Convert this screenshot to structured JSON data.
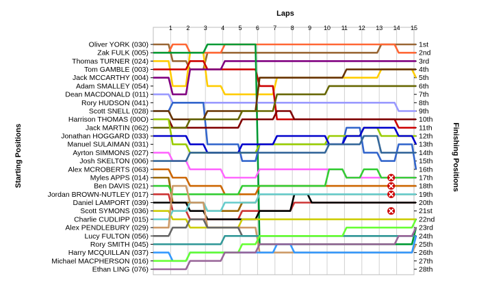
{
  "chart_data": {
    "type": "line",
    "title": "",
    "xlabel": "Laps",
    "ylabel_left": "Starting Positions",
    "ylabel_right": "Finishing Positions",
    "laps": [
      1,
      2,
      3,
      4,
      5,
      6,
      7,
      8,
      9,
      10,
      11,
      12,
      13,
      14,
      15
    ],
    "start_labels": [
      "Oliver YORK (030)",
      "Zak FULK (005)",
      "Thomas TURNER (024)",
      "Tom GAMBLE (003)",
      "Jack MCCARTHY (004)",
      "Adam SMALLEY (054)",
      "Dean MACDONALD (011)",
      "Rory HUDSON (041)",
      "Scott SNELL (028)",
      "Harrison THOMAS (00O)",
      "Jack MARTIN (062)",
      "Jonathan HOGGARD (033)",
      "Manuel SULAIMAN (031)",
      "Ayrton SIMMONS (027)",
      "Josh SKELTON (006)",
      "Alex MCROBERTS (063)",
      "Myles APPS (014)",
      "Ben DAVIS (021)",
      "Jordan BROWN-NUTLEY (017)",
      "Daniel LAMPORT (039)",
      "Scott SYMONS (036)",
      "Charlie CUDLIPP (015)",
      "Alex PENDLEBURY (029)",
      "Lucy FULTON (056)",
      "Rory SMITH (045)",
      "Harry MCQUILLAN (037)",
      "Michael MACPHERSON (016)",
      "Ethan LING (076)"
    ],
    "finish_labels": [
      "1st",
      "2nd",
      "3rd",
      "4th",
      "5th",
      "6th",
      "7th",
      "8th",
      "9th",
      "10th",
      "11th",
      "12th",
      "13th",
      "14th",
      "15th",
      "16th",
      "17th",
      "18th",
      "19th",
      "20th",
      "21st",
      "22nd",
      "23rd",
      "24th",
      "25th",
      "26th",
      "27th",
      "28th"
    ],
    "series": [
      {
        "color": "#996633",
        "values": [
          1,
          3,
          4,
          2,
          2,
          2,
          2,
          2,
          2,
          2,
          2,
          2,
          2,
          1,
          1,
          1
        ]
      },
      {
        "color": "#ff6633",
        "values": [
          2,
          1,
          2,
          2,
          1,
          1,
          1,
          1,
          1,
          1,
          1,
          1,
          1,
          1,
          2,
          2
        ]
      },
      {
        "color": "#ffcc00",
        "values": [
          3,
          6,
          2,
          6,
          7,
          7,
          7,
          5,
          5,
          5,
          5,
          5,
          5,
          4,
          4,
          5
        ]
      },
      {
        "color": "#cc0000",
        "values": [
          4,
          4,
          3,
          4,
          4,
          4,
          6,
          10,
          10,
          10,
          10,
          10,
          10,
          10,
          11,
          11
        ]
      },
      {
        "color": "#800080",
        "values": [
          5,
          7,
          4,
          4,
          3,
          3,
          3,
          3,
          3,
          3,
          3,
          3,
          3,
          3,
          3,
          3
        ]
      },
      {
        "color": "#009933",
        "values": [
          2,
          2,
          2,
          1,
          1,
          1,
          25,
          25,
          25,
          25,
          25,
          25,
          25,
          25,
          25,
          23
        ]
      },
      {
        "color": "#9999ff",
        "values": [
          7,
          8,
          8,
          8,
          8,
          8,
          8,
          8,
          8,
          8,
          8,
          8,
          8,
          8,
          9,
          9
        ]
      },
      {
        "color": "#3366cc",
        "values": [
          9,
          8,
          8,
          13,
          13,
          15,
          13,
          13,
          13,
          13,
          13,
          11,
          14,
          15,
          13,
          16
        ]
      },
      {
        "color": "#663300",
        "values": [
          9,
          10,
          10,
          9,
          9,
          9,
          5,
          5,
          5,
          5,
          5,
          4,
          4,
          4,
          4,
          4
        ]
      },
      {
        "color": "#800000",
        "values": [
          10,
          11,
          11,
          11,
          11,
          10,
          10,
          9,
          10,
          10,
          10,
          10,
          10,
          10,
          10,
          10
        ]
      },
      {
        "color": "#666600",
        "values": [
          11,
          11,
          10,
          10,
          10,
          9,
          9,
          7,
          7,
          7,
          6,
          6,
          6,
          6,
          6,
          6
        ]
      },
      {
        "color": "#99cc00",
        "values": [
          10,
          13,
          14,
          14,
          14,
          14,
          13,
          13,
          13,
          13,
          12,
          12,
          11,
          12,
          12,
          12
        ]
      },
      {
        "color": "#0000cc",
        "values": [
          12,
          12,
          13,
          14,
          14,
          13,
          13,
          12,
          12,
          12,
          13,
          12,
          11,
          11,
          12,
          13
        ]
      },
      {
        "color": "#ff66ff",
        "values": [
          14,
          15,
          16,
          16,
          17,
          17,
          16,
          16,
          16,
          16,
          16,
          17,
          17,
          17,
          17,
          17
        ]
      },
      {
        "color": "#336699",
        "values": [
          15,
          15,
          14,
          14,
          14,
          14,
          14,
          14,
          14,
          14,
          13,
          13,
          12,
          14,
          14,
          14
        ]
      },
      {
        "color": "#cc6600",
        "values": [
          16,
          17,
          18,
          18,
          19,
          19,
          18,
          18,
          18,
          18,
          18,
          18,
          18,
          18,
          18,
          18
        ]
      },
      {
        "color": "#996600",
        "values": [
          17,
          20,
          20,
          21,
          21,
          20,
          19,
          19,
          19,
          19,
          19,
          19,
          19,
          19,
          19,
          19
        ]
      },
      {
        "color": "#33cc33",
        "values": [
          18,
          19,
          19,
          19,
          19,
          18,
          18,
          18,
          18,
          18,
          16,
          17,
          16,
          17,
          17,
          17
        ]
      },
      {
        "color": "#cc3333",
        "values": [
          19,
          21,
          22,
          22,
          22,
          21,
          21,
          21,
          20,
          20,
          20,
          20,
          20,
          20,
          20,
          20
        ]
      },
      {
        "color": "#000000",
        "values": [
          20,
          20,
          21,
          22,
          22,
          22,
          21,
          21,
          19,
          20,
          20,
          20,
          20,
          20,
          20,
          20
        ]
      },
      {
        "color": "#cccc00",
        "values": [
          21,
          22,
          23,
          23,
          23,
          22,
          22,
          22,
          22,
          22,
          22,
          22,
          22,
          22,
          22,
          22
        ]
      },
      {
        "color": "#66cccc",
        "values": [
          22,
          21,
          20,
          21,
          20,
          20,
          19,
          19,
          19,
          19,
          19,
          19,
          19,
          19,
          19,
          19
        ]
      },
      {
        "color": "#cc9966",
        "values": [
          23,
          18,
          20,
          23,
          23,
          23,
          26,
          26,
          26,
          26,
          26,
          26,
          26,
          26,
          26,
          25
        ]
      },
      {
        "color": "#666666",
        "values": [
          24,
          23,
          22,
          23,
          23,
          24,
          24,
          24,
          24,
          24,
          24,
          24,
          24,
          24,
          24,
          24
        ]
      },
      {
        "color": "#339999",
        "values": [
          25,
          25,
          25,
          25,
          24,
          24,
          24,
          24,
          24,
          24,
          24,
          24,
          24,
          24,
          24,
          24
        ]
      },
      {
        "color": "#3399ff",
        "values": [
          26,
          27,
          26,
          26,
          26,
          26,
          26,
          25,
          26,
          26,
          26,
          26,
          26,
          26,
          26,
          24
        ]
      },
      {
        "color": "#66ff33",
        "values": [
          27,
          27,
          26,
          26,
          26,
          25,
          24,
          24,
          24,
          24,
          24,
          23,
          23,
          23,
          23,
          22
        ]
      },
      {
        "color": "#996699",
        "values": [
          28,
          28,
          27,
          27,
          26,
          26,
          25,
          25,
          25,
          25,
          25,
          25,
          25,
          25,
          24,
          23
        ]
      }
    ],
    "retirements": [
      {
        "lap": 14,
        "position": 17
      },
      {
        "lap": 14,
        "position": 18
      },
      {
        "lap": 14,
        "position": 19
      },
      {
        "lap": 14,
        "position": 21
      }
    ],
    "grid": true
  }
}
